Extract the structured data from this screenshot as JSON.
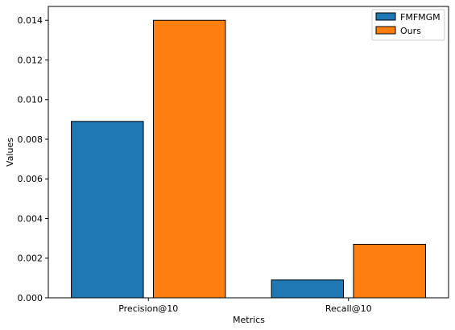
{
  "chart_data": {
    "type": "bar",
    "title": "",
    "xlabel": "Metrics",
    "ylabel": "Values",
    "categories": [
      "Precision@10",
      "Recall@10"
    ],
    "series": [
      {
        "name": "FMFMGM",
        "values": [
          0.0089,
          0.0009
        ],
        "color": "#1f77b4"
      },
      {
        "name": "Ours",
        "values": [
          0.014,
          0.0027
        ],
        "color": "#ff7f0e"
      }
    ],
    "ylim": [
      0,
      0.0147
    ],
    "yticks": [
      0.0,
      0.002,
      0.004,
      0.006,
      0.008,
      0.01,
      0.012,
      0.014
    ],
    "ytick_labels": [
      "0.000",
      "0.002",
      "0.004",
      "0.006",
      "0.008",
      "0.010",
      "0.012",
      "0.014"
    ],
    "legend_position": "top-right",
    "grid": false
  }
}
